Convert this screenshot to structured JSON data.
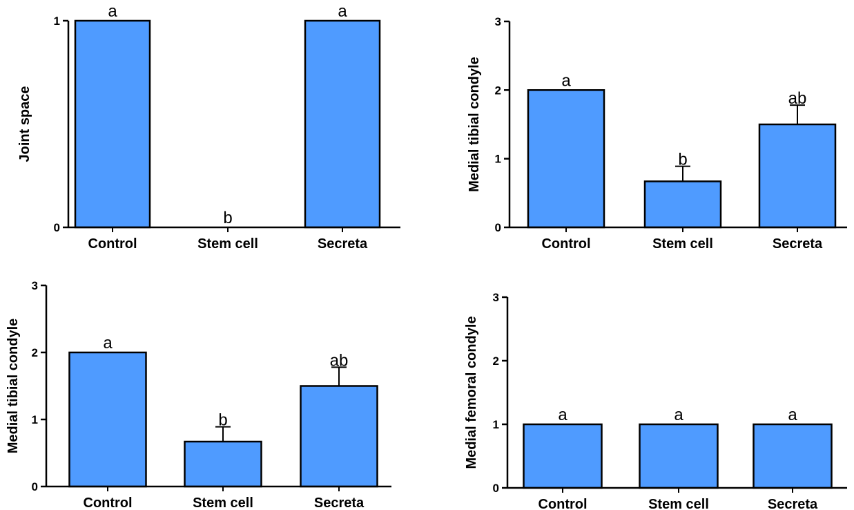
{
  "colors": {
    "bar_fill": "#4f9bff",
    "bar_stroke": "#000000",
    "axis": "#000000"
  },
  "chart_data": [
    {
      "type": "bar",
      "title": "",
      "xlabel": "",
      "ylabel": "Joint space",
      "categories": [
        "Control",
        "Stem cell",
        "Secreta"
      ],
      "values": [
        1,
        0,
        1
      ],
      "errors": [
        0,
        0,
        0
      ],
      "significance": [
        "a",
        "b",
        "a"
      ],
      "ylim": [
        0,
        1
      ],
      "yticks": [
        0,
        1
      ],
      "grid": false
    },
    {
      "type": "bar",
      "title": "",
      "xlabel": "",
      "ylabel": "Medial tibial condyle",
      "categories": [
        "Control",
        "Stem cell",
        "Secreta"
      ],
      "values": [
        2,
        0.67,
        1.5
      ],
      "errors": [
        0,
        0.22,
        0.28
      ],
      "significance": [
        "a",
        "b",
        "ab"
      ],
      "ylim": [
        0,
        3
      ],
      "yticks": [
        0,
        1,
        2,
        3
      ],
      "grid": false
    },
    {
      "type": "bar",
      "title": "",
      "xlabel": "",
      "ylabel": "Medial tibial condyle",
      "categories": [
        "Control",
        "Stem cell",
        "Secreta"
      ],
      "values": [
        2,
        0.67,
        1.5
      ],
      "errors": [
        0,
        0.22,
        0.28
      ],
      "significance": [
        "a",
        "b",
        "ab"
      ],
      "ylim": [
        0,
        3
      ],
      "yticks": [
        0,
        1,
        2,
        3
      ],
      "grid": false
    },
    {
      "type": "bar",
      "title": "",
      "xlabel": "",
      "ylabel": "Medial femoral condyle",
      "categories": [
        "Control",
        "Stem cell",
        "Secreta"
      ],
      "values": [
        1,
        1,
        1
      ],
      "errors": [
        0,
        0,
        0
      ],
      "significance": [
        "a",
        "a",
        "a"
      ],
      "ylim": [
        0,
        3
      ],
      "yticks": [
        0,
        1,
        2,
        3
      ],
      "grid": false
    }
  ]
}
